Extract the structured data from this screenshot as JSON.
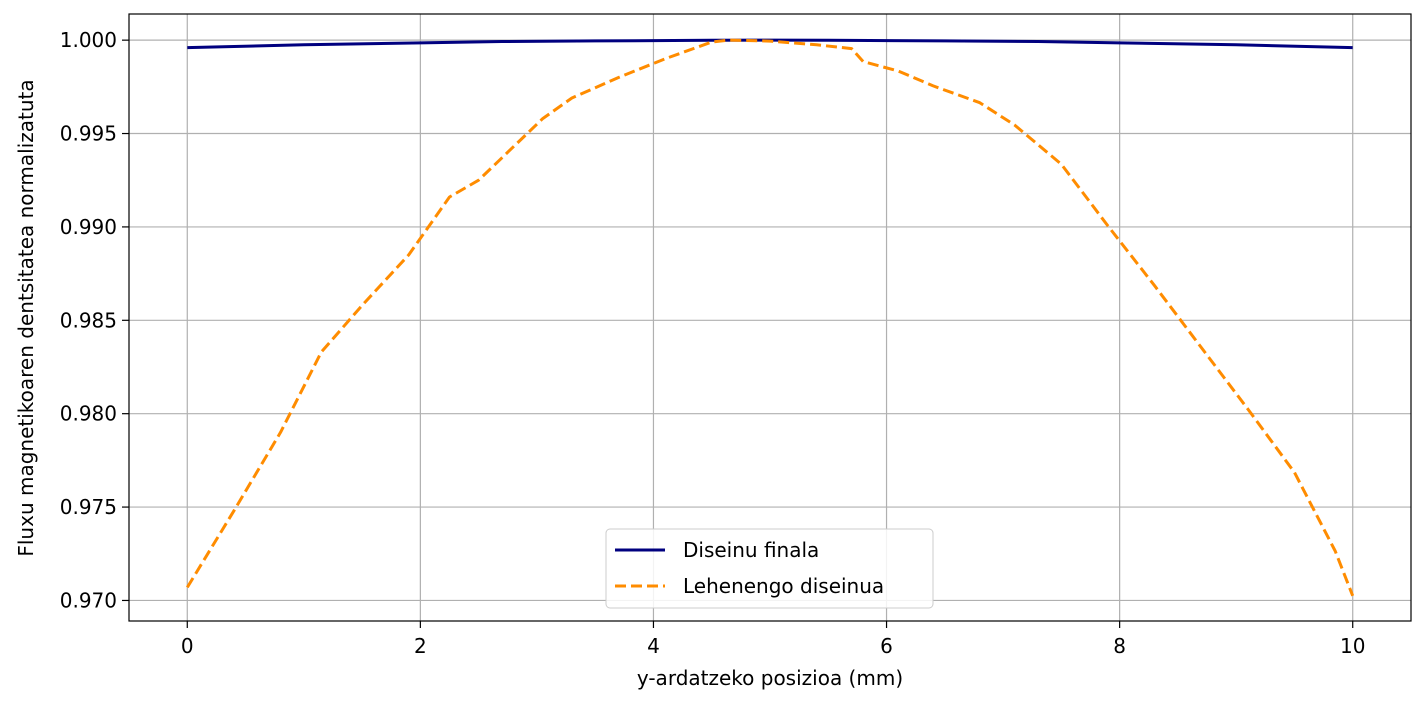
{
  "chart_data": {
    "type": "line",
    "xlabel": "y-ardatzeko posizioa (mm)",
    "ylabel": "Fluxu magnetikoaren dentsitatea normalizatuta",
    "xlim": [
      -0.5,
      10.5
    ],
    "ylim": [
      0.9689,
      1.0014
    ],
    "xticks": [
      0,
      2,
      4,
      6,
      8,
      10
    ],
    "xtick_labels": [
      "0",
      "2",
      "4",
      "6",
      "8",
      "10"
    ],
    "yticks": [
      0.97,
      0.975,
      0.98,
      0.985,
      0.99,
      0.995,
      1.0
    ],
    "ytick_labels": [
      "0.970",
      "0.975",
      "0.980",
      "0.985",
      "0.990",
      "0.995",
      "1.000"
    ],
    "grid": true,
    "legend_position": "lower center",
    "series": [
      {
        "name": "Diseinu finala",
        "color": "#00007f",
        "style": "solid",
        "x": [
          0,
          1,
          2,
          2.7,
          3.5,
          4.5,
          5,
          5.5,
          6.5,
          7.3,
          8,
          9,
          10
        ],
        "y": [
          0.9996,
          0.99975,
          0.99985,
          0.99993,
          0.99996,
          0.99999,
          1.0,
          0.99999,
          0.99996,
          0.99993,
          0.99985,
          0.99975,
          0.9996
        ]
      },
      {
        "name": "Lehenengo diseinua",
        "color": "#ff8c00",
        "style": "dashed",
        "x": [
          0,
          0.4,
          0.8,
          1.15,
          1.5,
          1.9,
          2.25,
          2.5,
          2.8,
          3.05,
          3.3,
          3.7,
          4.1,
          4.5,
          4.65,
          5.0,
          5.4,
          5.7,
          5.8,
          6.1,
          6.4,
          6.8,
          7.1,
          7.5,
          7.9,
          8.3,
          8.7,
          9.1,
          9.5,
          9.85,
          10.0
        ],
        "y": [
          0.9707,
          0.9748,
          0.979,
          0.9833,
          0.9858,
          0.9885,
          0.9916,
          0.9925,
          0.9943,
          0.9958,
          0.9969,
          0.998,
          0.999,
          0.9999,
          1.0,
          0.99995,
          0.99975,
          0.99955,
          0.99885,
          0.99835,
          0.99755,
          0.99665,
          0.99545,
          0.99335,
          0.99005,
          0.98685,
          0.98355,
          0.98025,
          0.97685,
          0.97265,
          0.97025
        ]
      }
    ]
  }
}
